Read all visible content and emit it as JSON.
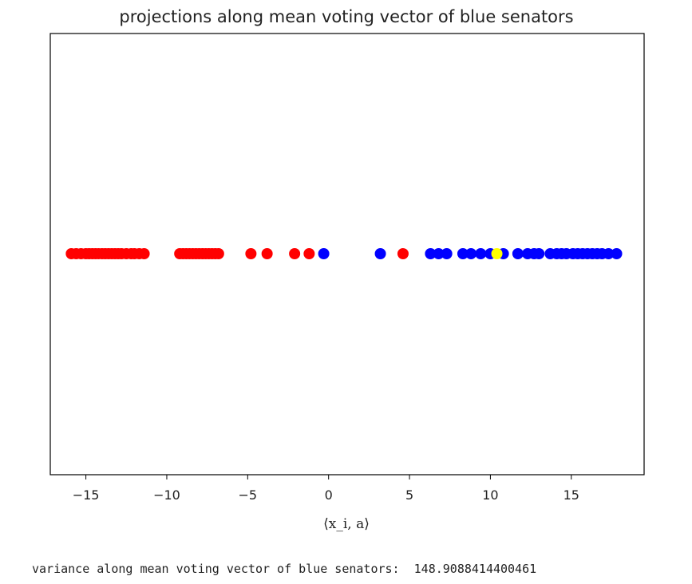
{
  "chart_data": {
    "type": "scatter",
    "title": "projections along mean voting vector of blue senators",
    "xlabel": "⟨x_i, a⟩",
    "ylabel": "",
    "xlim": [
      -17.2,
      19.5
    ],
    "xticks": [
      -15,
      -10,
      -5,
      0,
      5,
      10,
      15
    ],
    "xtick_labels": [
      "−15",
      "−10",
      "−5",
      "0",
      "5",
      "10",
      "15"
    ],
    "yticks": [],
    "grid": false,
    "series": [
      {
        "color": "#ff0000",
        "x": [
          -15.9,
          -15.6,
          -15.3,
          -15.0,
          -14.8,
          -14.6,
          -14.4,
          -14.2,
          -14.0,
          -13.8,
          -13.6,
          -13.4,
          -13.2,
          -13.0,
          -12.8,
          -12.5,
          -12.2,
          -12.0,
          -11.7,
          -11.4,
          -9.2,
          -9.0,
          -8.8,
          -8.6,
          -8.4,
          -8.2,
          -8.0,
          -7.8,
          -7.6,
          -7.4,
          -7.2,
          -7.0,
          -6.8,
          -4.8,
          -3.8,
          -2.1,
          -1.2,
          4.6
        ],
        "y": [
          0,
          0,
          0,
          0,
          0,
          0,
          0,
          0,
          0,
          0,
          0,
          0,
          0,
          0,
          0,
          0,
          0,
          0,
          0,
          0,
          0,
          0,
          0,
          0,
          0,
          0,
          0,
          0,
          0,
          0,
          0,
          0,
          0,
          0,
          0,
          0,
          0,
          0
        ]
      },
      {
        "color": "#0000ff",
        "x": [
          -0.3,
          3.2,
          6.3,
          6.8,
          7.3,
          8.3,
          8.8,
          9.4,
          10.0,
          10.8,
          11.7,
          12.3,
          12.7,
          13.0,
          13.7,
          14.1,
          14.4,
          14.7,
          15.1,
          15.4,
          15.7,
          16.0,
          16.3,
          16.6,
          16.9,
          17.3,
          17.8
        ],
        "y": [
          0,
          0,
          0,
          0,
          0,
          0,
          0,
          0,
          0,
          0,
          0,
          0,
          0,
          0,
          0,
          0,
          0,
          0,
          0,
          0,
          0,
          0,
          0,
          0,
          0,
          0,
          0
        ]
      },
      {
        "color": "#ffff00",
        "x": [
          10.4
        ],
        "y": [
          0
        ]
      }
    ]
  },
  "output": {
    "text": "variance along mean voting vector of blue senators:  148.9088414400461"
  }
}
